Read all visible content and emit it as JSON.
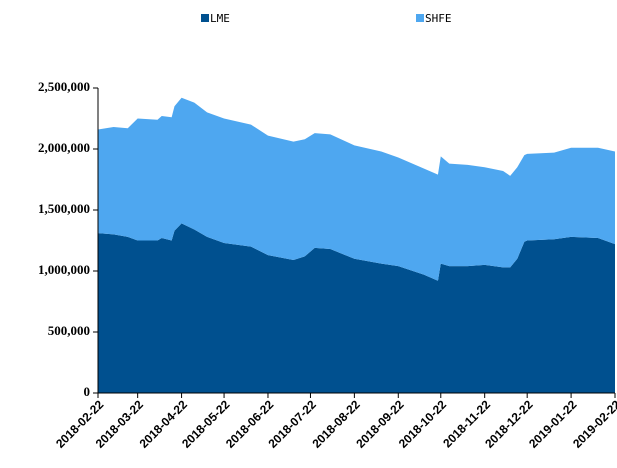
{
  "chart_data": {
    "type": "stacked_area",
    "x": [
      "2018-02-22",
      "2018-03-05",
      "2018-03-15",
      "2018-03-22",
      "2018-04-05",
      "2018-04-08",
      "2018-04-15",
      "2018-04-17",
      "2018-04-22",
      "2018-05-01",
      "2018-05-10",
      "2018-05-22",
      "2018-06-10",
      "2018-06-22",
      "2018-07-10",
      "2018-07-18",
      "2018-07-25",
      "2018-08-05",
      "2018-08-22",
      "2018-09-10",
      "2018-09-22",
      "2018-10-10",
      "2018-10-20",
      "2018-10-22",
      "2018-10-28",
      "2018-11-10",
      "2018-11-22",
      "2018-12-05",
      "2018-12-10",
      "2018-12-15",
      "2018-12-20",
      "2018-12-22",
      "2019-01-10",
      "2019-01-22",
      "2019-02-10",
      "2019-02-22"
    ],
    "series": [
      {
        "name": "LME",
        "color": "#00508f",
        "values": [
          1310000,
          1300000,
          1280000,
          1250000,
          1250000,
          1270000,
          1250000,
          1330000,
          1390000,
          1340000,
          1280000,
          1230000,
          1200000,
          1130000,
          1090000,
          1120000,
          1190000,
          1180000,
          1100000,
          1060000,
          1040000,
          970000,
          920000,
          1060000,
          1040000,
          1040000,
          1050000,
          1030000,
          1030000,
          1100000,
          1240000,
          1250000,
          1260000,
          1280000,
          1270000,
          1220000
        ]
      },
      {
        "name": "SHFE",
        "color": "#4ea7f0",
        "values": [
          850000,
          880000,
          890000,
          1000000,
          990000,
          1000000,
          1010000,
          1020000,
          1030000,
          1040000,
          1020000,
          1020000,
          1000000,
          980000,
          970000,
          960000,
          940000,
          940000,
          930000,
          920000,
          890000,
          870000,
          870000,
          880000,
          840000,
          830000,
          800000,
          790000,
          750000,
          750000,
          710000,
          710000,
          710000,
          730000,
          740000,
          760000
        ]
      }
    ],
    "xlim": [
      "2018-02-22",
      "2019-02-22"
    ],
    "xticks": [
      "2018-02-22",
      "2018-03-22",
      "2018-04-22",
      "2018-05-22",
      "2018-06-22",
      "2018-07-22",
      "2018-08-22",
      "2018-09-22",
      "2018-10-22",
      "2018-11-22",
      "2018-12-22",
      "2019-01-22",
      "2019-02-22"
    ],
    "ylim": [
      0,
      2500000
    ],
    "yticks": [
      0,
      {
        "value": 500000,
        "label": "500,000"
      },
      {
        "value": 1000000,
        "label": "1,000,000"
      },
      {
        "value": 1500000,
        "label": "1,500,000"
      },
      {
        "value": 2000000,
        "label": "2,000,000"
      },
      {
        "value": 2500000,
        "label": "2,500,000"
      }
    ],
    "legend": "top"
  }
}
